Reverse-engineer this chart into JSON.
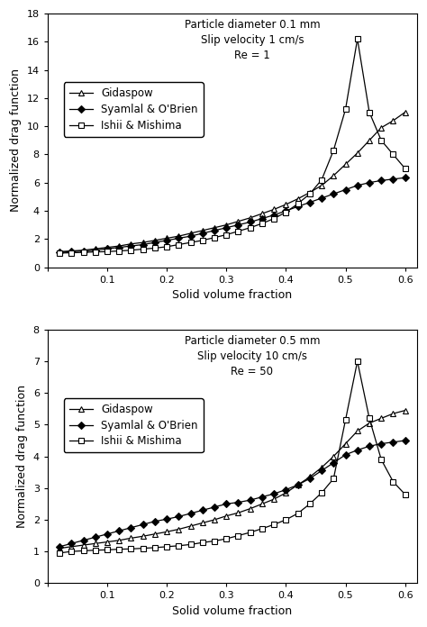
{
  "plot1": {
    "title_lines": [
      "Particle diameter 0.1 mm",
      "Slip velocity 1 cm/s",
      "Re = 1"
    ],
    "ylabel": "Normalized drag function",
    "xlabel": "Solid volume fraction",
    "ylim": [
      0,
      18
    ],
    "yticks": [
      0,
      2,
      4,
      6,
      8,
      10,
      12,
      14,
      16,
      18
    ],
    "xlim": [
      0,
      0.62
    ],
    "xticks": [
      0,
      0.1,
      0.2,
      0.3,
      0.4,
      0.5,
      0.6
    ],
    "gidaspow_x": [
      0.02,
      0.04,
      0.06,
      0.08,
      0.1,
      0.12,
      0.14,
      0.16,
      0.18,
      0.2,
      0.22,
      0.24,
      0.26,
      0.28,
      0.3,
      0.32,
      0.34,
      0.36,
      0.38,
      0.4,
      0.42,
      0.44,
      0.46,
      0.48,
      0.5,
      0.52,
      0.54,
      0.56,
      0.58,
      0.6
    ],
    "gidaspow_y": [
      1.1,
      1.15,
      1.2,
      1.3,
      1.4,
      1.5,
      1.65,
      1.75,
      1.9,
      2.05,
      2.2,
      2.4,
      2.6,
      2.8,
      3.0,
      3.25,
      3.5,
      3.8,
      4.1,
      4.45,
      4.85,
      5.3,
      5.8,
      6.5,
      7.3,
      8.1,
      9.0,
      9.9,
      10.4,
      11.0
    ],
    "syamlal_x": [
      0.02,
      0.04,
      0.06,
      0.08,
      0.1,
      0.12,
      0.14,
      0.16,
      0.18,
      0.2,
      0.22,
      0.24,
      0.26,
      0.28,
      0.3,
      0.32,
      0.34,
      0.36,
      0.38,
      0.4,
      0.42,
      0.44,
      0.46,
      0.48,
      0.5,
      0.52,
      0.54,
      0.56,
      0.58,
      0.6
    ],
    "syamlal_y": [
      1.05,
      1.1,
      1.15,
      1.2,
      1.3,
      1.4,
      1.5,
      1.6,
      1.75,
      1.9,
      2.05,
      2.2,
      2.4,
      2.6,
      2.8,
      3.0,
      3.2,
      3.45,
      3.7,
      4.0,
      4.3,
      4.6,
      4.9,
      5.2,
      5.5,
      5.8,
      6.0,
      6.15,
      6.25,
      6.35
    ],
    "ishii_x": [
      0.02,
      0.04,
      0.06,
      0.08,
      0.1,
      0.12,
      0.14,
      0.16,
      0.18,
      0.2,
      0.22,
      0.24,
      0.26,
      0.28,
      0.3,
      0.32,
      0.34,
      0.36,
      0.38,
      0.4,
      0.42,
      0.44,
      0.46,
      0.48,
      0.5,
      0.52,
      0.54,
      0.56,
      0.58,
      0.6
    ],
    "ishii_y": [
      1.0,
      1.02,
      1.05,
      1.08,
      1.1,
      1.15,
      1.2,
      1.28,
      1.35,
      1.45,
      1.6,
      1.75,
      1.9,
      2.1,
      2.3,
      2.55,
      2.8,
      3.1,
      3.45,
      3.9,
      4.5,
      5.2,
      6.2,
      8.3,
      11.2,
      16.2,
      11.0,
      9.0,
      8.0,
      7.0
    ]
  },
  "plot2": {
    "title_lines": [
      "Particle diameter 0.5 mm",
      "Slip velocity 10 cm/s",
      "Re = 50"
    ],
    "ylabel": "Normalized drag function",
    "xlabel": "Solid volume fraction",
    "ylim": [
      0,
      8
    ],
    "yticks": [
      0,
      1,
      2,
      3,
      4,
      5,
      6,
      7,
      8
    ],
    "xlim": [
      0,
      0.62
    ],
    "xticks": [
      0,
      0.1,
      0.2,
      0.3,
      0.4,
      0.5,
      0.6
    ],
    "gidaspow_x": [
      0.02,
      0.04,
      0.06,
      0.08,
      0.1,
      0.12,
      0.14,
      0.16,
      0.18,
      0.2,
      0.22,
      0.24,
      0.26,
      0.28,
      0.3,
      0.32,
      0.34,
      0.36,
      0.38,
      0.4,
      0.42,
      0.44,
      0.46,
      0.48,
      0.5,
      0.52,
      0.54,
      0.56,
      0.58,
      0.6
    ],
    "gidaspow_y": [
      1.1,
      1.15,
      1.2,
      1.25,
      1.3,
      1.35,
      1.42,
      1.48,
      1.55,
      1.62,
      1.7,
      1.8,
      1.9,
      2.0,
      2.12,
      2.22,
      2.35,
      2.5,
      2.65,
      2.85,
      3.1,
      3.35,
      3.65,
      4.0,
      4.4,
      4.8,
      5.05,
      5.2,
      5.35,
      5.45
    ],
    "syamlal_x": [
      0.02,
      0.04,
      0.06,
      0.08,
      0.1,
      0.12,
      0.14,
      0.16,
      0.18,
      0.2,
      0.22,
      0.24,
      0.26,
      0.28,
      0.3,
      0.32,
      0.34,
      0.36,
      0.38,
      0.4,
      0.42,
      0.44,
      0.46,
      0.48,
      0.5,
      0.52,
      0.54,
      0.56,
      0.58,
      0.6
    ],
    "syamlal_y": [
      1.15,
      1.25,
      1.35,
      1.45,
      1.55,
      1.65,
      1.75,
      1.85,
      1.95,
      2.02,
      2.1,
      2.2,
      2.3,
      2.4,
      2.5,
      2.55,
      2.62,
      2.72,
      2.82,
      2.95,
      3.1,
      3.3,
      3.55,
      3.8,
      4.05,
      4.2,
      4.32,
      4.4,
      4.45,
      4.5
    ],
    "ishii_x": [
      0.02,
      0.04,
      0.06,
      0.08,
      0.1,
      0.12,
      0.14,
      0.16,
      0.18,
      0.2,
      0.22,
      0.24,
      0.26,
      0.28,
      0.3,
      0.32,
      0.34,
      0.36,
      0.38,
      0.4,
      0.42,
      0.44,
      0.46,
      0.48,
      0.5,
      0.52,
      0.54,
      0.56,
      0.58,
      0.6
    ],
    "ishii_y": [
      0.95,
      1.0,
      1.02,
      1.04,
      1.05,
      1.07,
      1.08,
      1.1,
      1.12,
      1.15,
      1.18,
      1.22,
      1.28,
      1.33,
      1.4,
      1.5,
      1.6,
      1.72,
      1.85,
      2.0,
      2.2,
      2.5,
      2.85,
      3.3,
      5.15,
      7.0,
      5.2,
      3.9,
      3.2,
      2.8
    ]
  },
  "line_color": "#000000",
  "bg_color": "#ffffff",
  "legend_labels": [
    "Gidaspow",
    "Syamlal & O'Brien",
    "Ishii & Mishima"
  ],
  "fontsize_annotation": 8.5,
  "fontsize_axis_label": 9,
  "fontsize_tick": 8,
  "fontsize_legend": 8.5
}
